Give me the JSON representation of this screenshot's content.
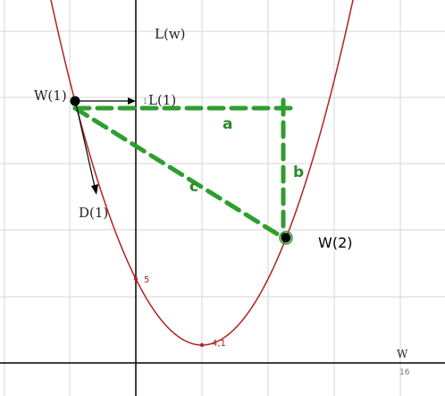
{
  "labels": {
    "loss_axis": "L(w)",
    "w1_point": "W(1)",
    "l1_vector": "L(1)",
    "l1_subscript": "1",
    "d1_vector": "D(1)",
    "w2_point": "W(2)",
    "segment_a": "a",
    "segment_b": "b",
    "segment_c": "c",
    "y_intercept_label": "5",
    "vertex_label": "4,1",
    "w_axis": "W",
    "w_axis_tick": "16"
  },
  "colors": {
    "curve": "#b22222",
    "dashes": "#2e9e2e",
    "grid": "#d6d6d6",
    "axis": "#000000",
    "label_green": "#2a8a2a"
  }
}
